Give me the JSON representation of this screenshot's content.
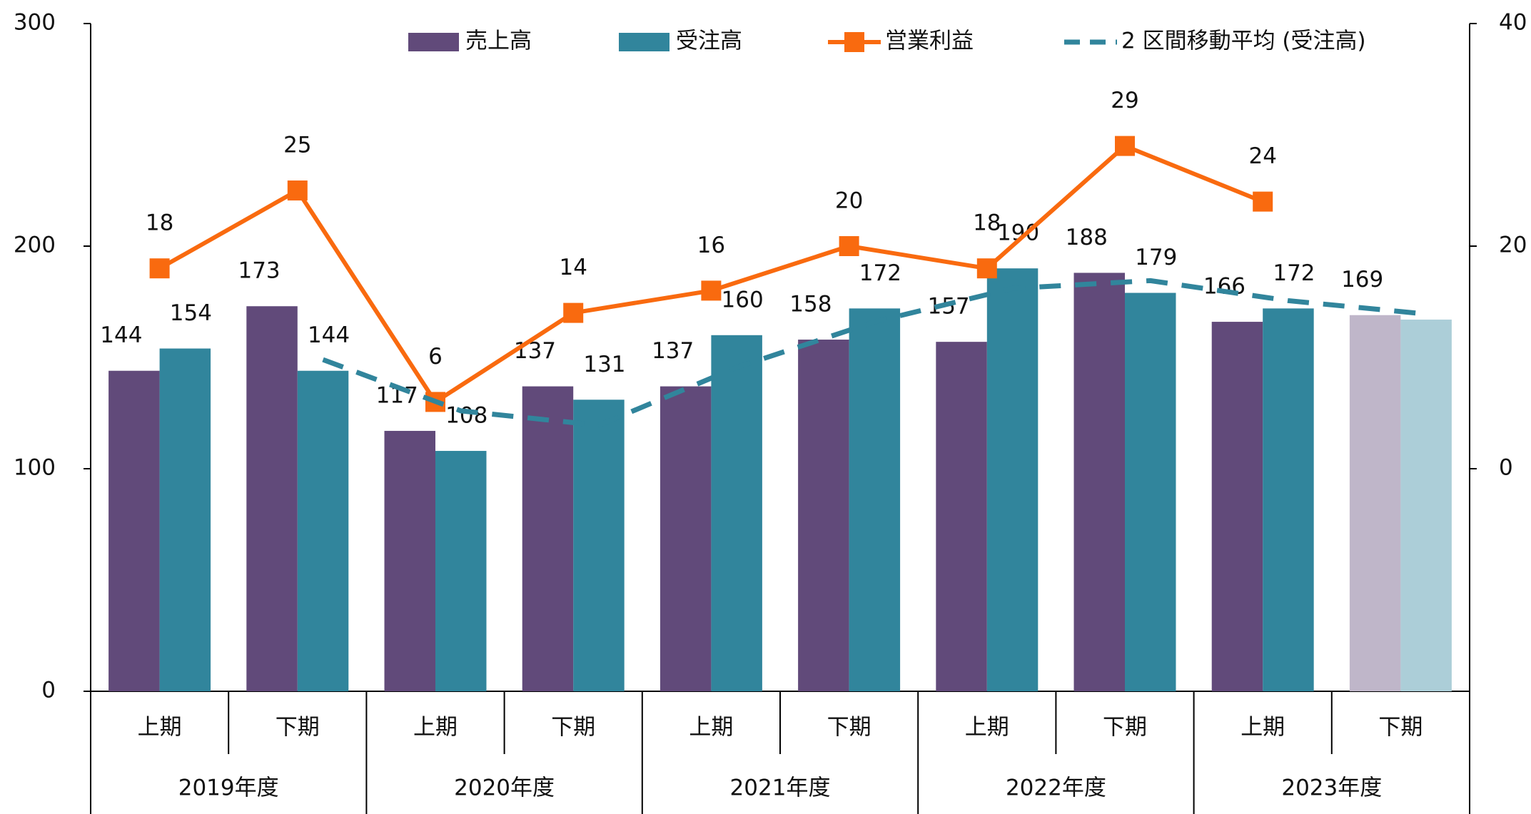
{
  "chart_data": {
    "type": "bar",
    "categories": [
      "上期",
      "下期",
      "上期",
      "下期",
      "上期",
      "下期",
      "上期",
      "下期",
      "上期",
      "下期"
    ],
    "groups": [
      "2019年度",
      "2020年度",
      "2021年度",
      "2022年度",
      "2023年度"
    ],
    "ylim": [
      0,
      300
    ],
    "yticks": [
      0,
      100,
      200,
      300
    ],
    "y2lim": [
      -20,
      40
    ],
    "y2ticks": [
      0,
      20,
      40
    ],
    "series": [
      {
        "name": "売上高",
        "type": "bar",
        "color": "#614a7a",
        "data_labels": true,
        "colors": [
          "#614a7a",
          "#614a7a",
          "#614a7a",
          "#614a7a",
          "#614a7a",
          "#614a7a",
          "#614a7a",
          "#614a7a",
          "#614a7a",
          "#bfb6c9"
        ],
        "values": [
          144,
          173,
          117,
          137,
          137,
          158,
          157,
          188,
          166,
          169
        ]
      },
      {
        "name": "受注高",
        "type": "bar",
        "color": "#31859c",
        "data_labels": true,
        "colors": [
          "#31859c",
          "#31859c",
          "#31859c",
          "#31859c",
          "#31859c",
          "#31859c",
          "#31859c",
          "#31859c",
          "#31859c",
          "#acced8"
        ],
        "values": [
          154,
          144,
          108,
          131,
          160,
          172,
          190,
          179,
          172,
          167
        ],
        "value_labels": [
          "154",
          "144",
          "108",
          "131",
          "160",
          "172",
          "190",
          "179",
          "172",
          null
        ]
      },
      {
        "name": "営業利益",
        "type": "line",
        "axis": "y2",
        "marker": "square",
        "color": "#f96a0f",
        "data_labels": true,
        "values": [
          18,
          25,
          6,
          14,
          16,
          20,
          18,
          29,
          24,
          null
        ]
      },
      {
        "name": "2 区間移動平均 (受注高)",
        "type": "line",
        "dashed": true,
        "color": "#31859c",
        "data_labels": false,
        "values": [
          null,
          149,
          126,
          119.5,
          145.5,
          166,
          181,
          184.5,
          175.5,
          169.5
        ]
      }
    ]
  }
}
